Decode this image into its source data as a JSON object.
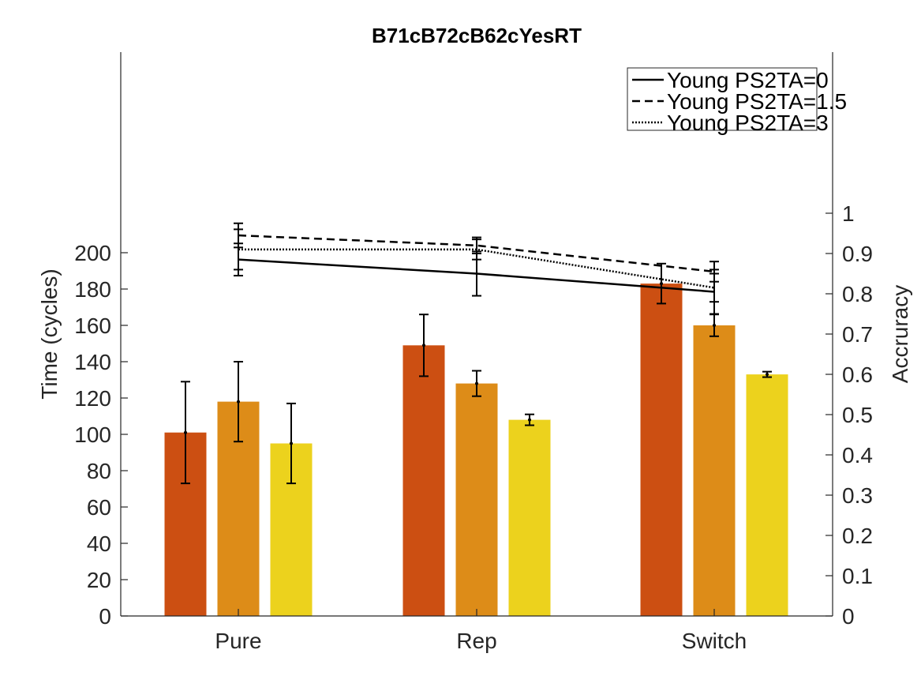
{
  "chart_data": {
    "type": "bar",
    "title": "B71cB72cB62cYesRT",
    "categories": [
      "Pure",
      "Rep",
      "Switch"
    ],
    "ylabel": "Time (cycles)",
    "ylim": [
      0,
      200
    ],
    "yticks": [
      0,
      20,
      40,
      60,
      80,
      100,
      120,
      140,
      160,
      180,
      200
    ],
    "bar_colors": [
      "#cc4f12",
      "#dd8c18",
      "#ecd21d"
    ],
    "bar_series": [
      {
        "values": [
          101,
          149,
          183
        ],
        "errors": [
          28,
          17,
          11
        ]
      },
      {
        "values": [
          118,
          128,
          160
        ],
        "errors": [
          22,
          7,
          6
        ]
      },
      {
        "values": [
          95,
          108,
          133
        ],
        "errors": [
          22,
          3,
          1.5
        ]
      }
    ],
    "y2label": "Accruracy",
    "y2ticks": [
      0,
      0.1,
      0.2,
      0.3,
      0.4,
      0.5,
      0.6,
      0.7,
      0.8,
      0.9,
      1
    ],
    "y2tick_labels": [
      "0",
      "0.1",
      "0.2",
      "0.3",
      "0.4",
      "0.5",
      "0.6",
      "0.7",
      "0.8",
      "0.9",
      "1"
    ],
    "y2lim": [
      0,
      1
    ],
    "line_series": [
      {
        "name": "Young PS2TA=0",
        "dash": "solid",
        "values": [
          0.885,
          0.85,
          0.805
        ],
        "errors": [
          0.04,
          0.055,
          0.055
        ]
      },
      {
        "name": "Young PS2TA=1.5",
        "dash": "dashed",
        "values": [
          0.945,
          0.92,
          0.855
        ],
        "errors": [
          0.03,
          0.02,
          0.025
        ]
      },
      {
        "name": "Young PS2TA=3",
        "dash": "dotted",
        "values": [
          0.91,
          0.91,
          0.815
        ],
        "errors": [
          0.05,
          0.025,
          0.035
        ]
      }
    ],
    "legend_position": "top-right",
    "grid": false
  }
}
